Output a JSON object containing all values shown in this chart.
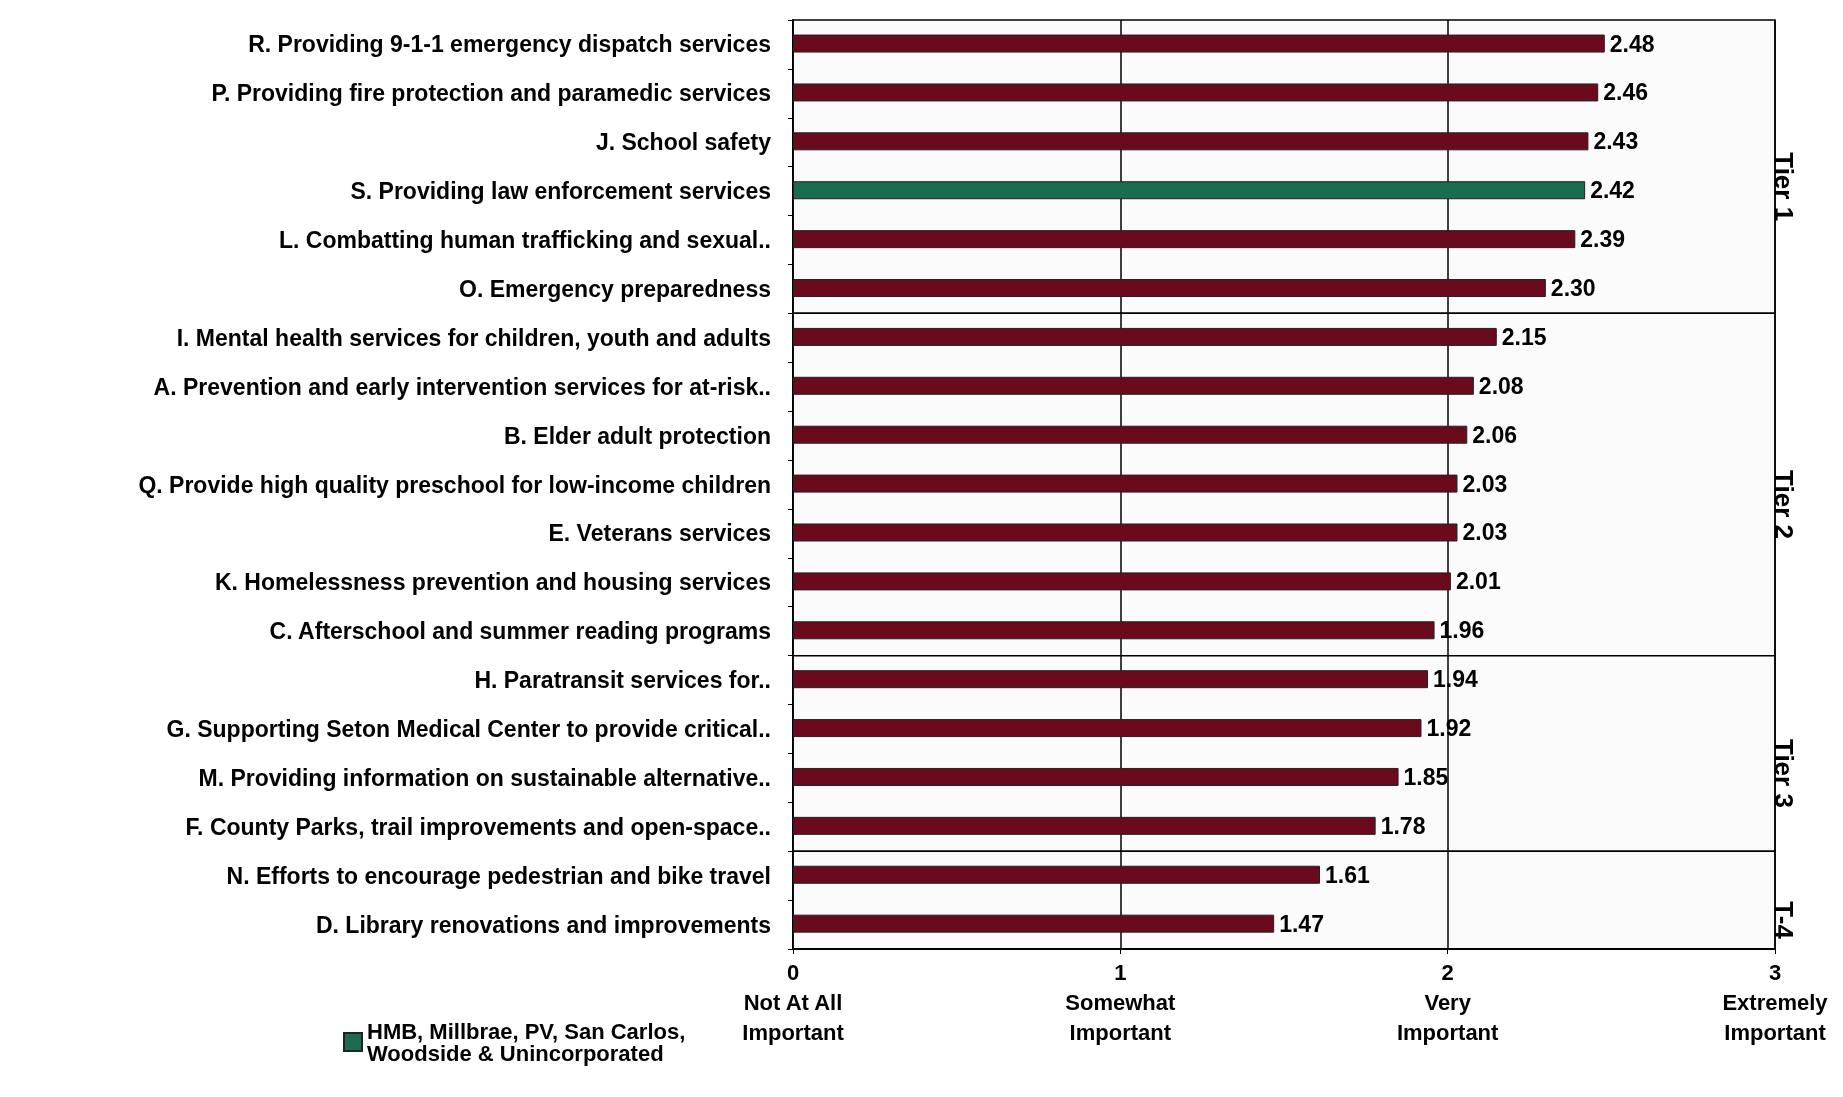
{
  "chart_data": {
    "type": "bar",
    "orientation": "horizontal",
    "stacked": true,
    "categories": [
      "R. Providing 9-1-1 emergency dispatch services",
      "P. Providing fire protection and paramedic services",
      "J. School safety",
      "S. Providing law enforcement services",
      "L. Combatting human trafficking and sexual..",
      "O. Emergency preparedness",
      "I. Mental health services for children, youth and adults",
      "A. Prevention and early intervention services for at-risk..",
      "B. Elder adult protection",
      "Q. Provide high quality preschool for low-income children",
      "E. Veterans services",
      "K. Homelessness prevention and housing services",
      "C. Afterschool and summer reading programs",
      "H. Paratransit services for..",
      "G. Supporting Seton Medical Center to provide critical..",
      "M. Providing information on sustainable alternative..",
      "F. County Parks, trail improvements and open-space..",
      "N. Efforts to encourage pedestrian and bike travel",
      "D. Library renovations and improvements"
    ],
    "series": [
      {
        "color": "#6b0a1c",
        "values": [
          2.48,
          2.46,
          2.43,
          null,
          2.39,
          2.3,
          2.15,
          2.08,
          2.06,
          2.03,
          2.03,
          2.01,
          1.96,
          1.94,
          1.92,
          1.85,
          1.78,
          1.61,
          1.47
        ],
        "value_labels": [
          "2.48",
          "2.46",
          "2.43",
          null,
          "2.39",
          "2.30",
          "2.15",
          "2.08",
          "2.06",
          "2.03",
          "2.03",
          "2.01",
          "1.96",
          "1.94",
          "1.92",
          "1.85",
          "1.78",
          "1.61",
          "1.47"
        ]
      },
      {
        "name": "HMB, Millbrae, PV, San Carlos,\nWoodside & Unincorporated",
        "color": "#1b6b4f",
        "values": [
          null,
          null,
          null,
          2.42,
          null,
          null,
          null,
          null,
          null,
          null,
          null,
          null,
          null,
          null,
          null,
          null,
          null,
          null,
          null
        ],
        "value_labels": [
          null,
          null,
          null,
          "2.42",
          null,
          null,
          null,
          null,
          null,
          null,
          null,
          null,
          null,
          null,
          null,
          null,
          null,
          null,
          null
        ]
      }
    ],
    "xlim": [
      0,
      3
    ],
    "xticks": [
      {
        "value": 0,
        "label": "0\nNot At All\nImportant"
      },
      {
        "value": 1,
        "label": "1\nSomewhat\nImportant"
      },
      {
        "value": 2,
        "label": "2\nVery\nImportant"
      },
      {
        "value": 3,
        "label": "3\nExtremely\nImportant"
      }
    ],
    "bands": [
      {
        "axis": "y",
        "from": "R. Providing 9-1-1 emergency dispatch services",
        "to": "O. Emergency preparedness",
        "label": "Tier 1",
        "color": "#fbfbfb"
      },
      {
        "axis": "y",
        "from": "I. Mental health services for children, youth and adults",
        "to": "C. Afterschool and summer reading programs",
        "label": "Tier 2",
        "color": "#fbfbfb"
      },
      {
        "axis": "y",
        "from": "H. Paratransit services for..",
        "to": "F. County Parks, trail improvements and open-space..",
        "label": "Tier 3",
        "color": "#fbfbfb"
      },
      {
        "axis": "y",
        "from": "N. Efforts to encourage pedestrian and bike travel",
        "to": "D. Library renovations and improvements",
        "label": "T-4",
        "color": "#fbfbfb"
      }
    ],
    "grid": "x",
    "legend": "bottom left"
  }
}
